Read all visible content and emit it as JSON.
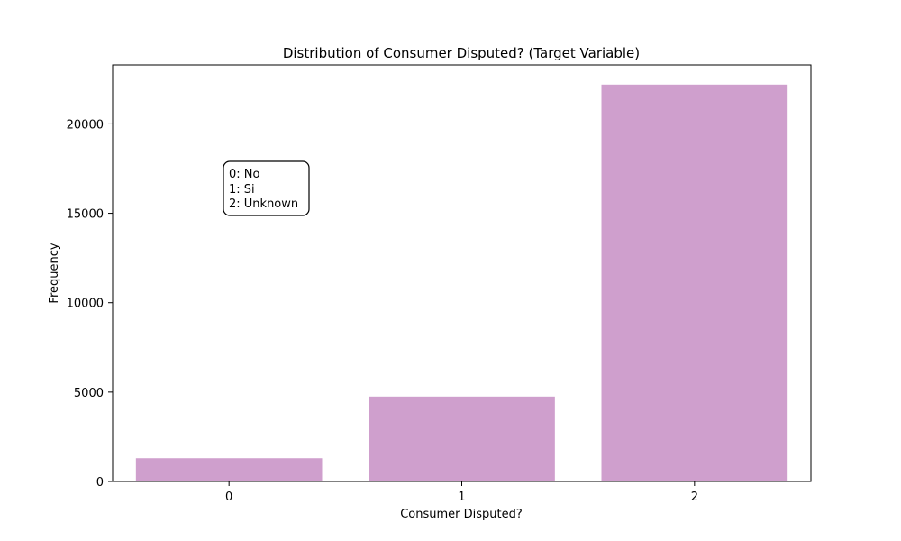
{
  "chart_data": {
    "type": "bar",
    "title": "Distribution of Consumer Disputed? (Target Variable)",
    "xlabel": "Consumer Disputed?",
    "ylabel": "Frequency",
    "categories": [
      "0",
      "1",
      "2"
    ],
    "values": [
      1300,
      4750,
      22200
    ],
    "ylim": [
      0,
      23300
    ],
    "yticks": [
      0,
      5000,
      10000,
      15000,
      20000
    ],
    "bar_color": "#cf9fcd",
    "grid": false,
    "legend": "none",
    "annotation": {
      "lines": [
        "0: No",
        "1: Si",
        "2: Unknown"
      ],
      "placement": "upper-left, over category 0"
    }
  }
}
